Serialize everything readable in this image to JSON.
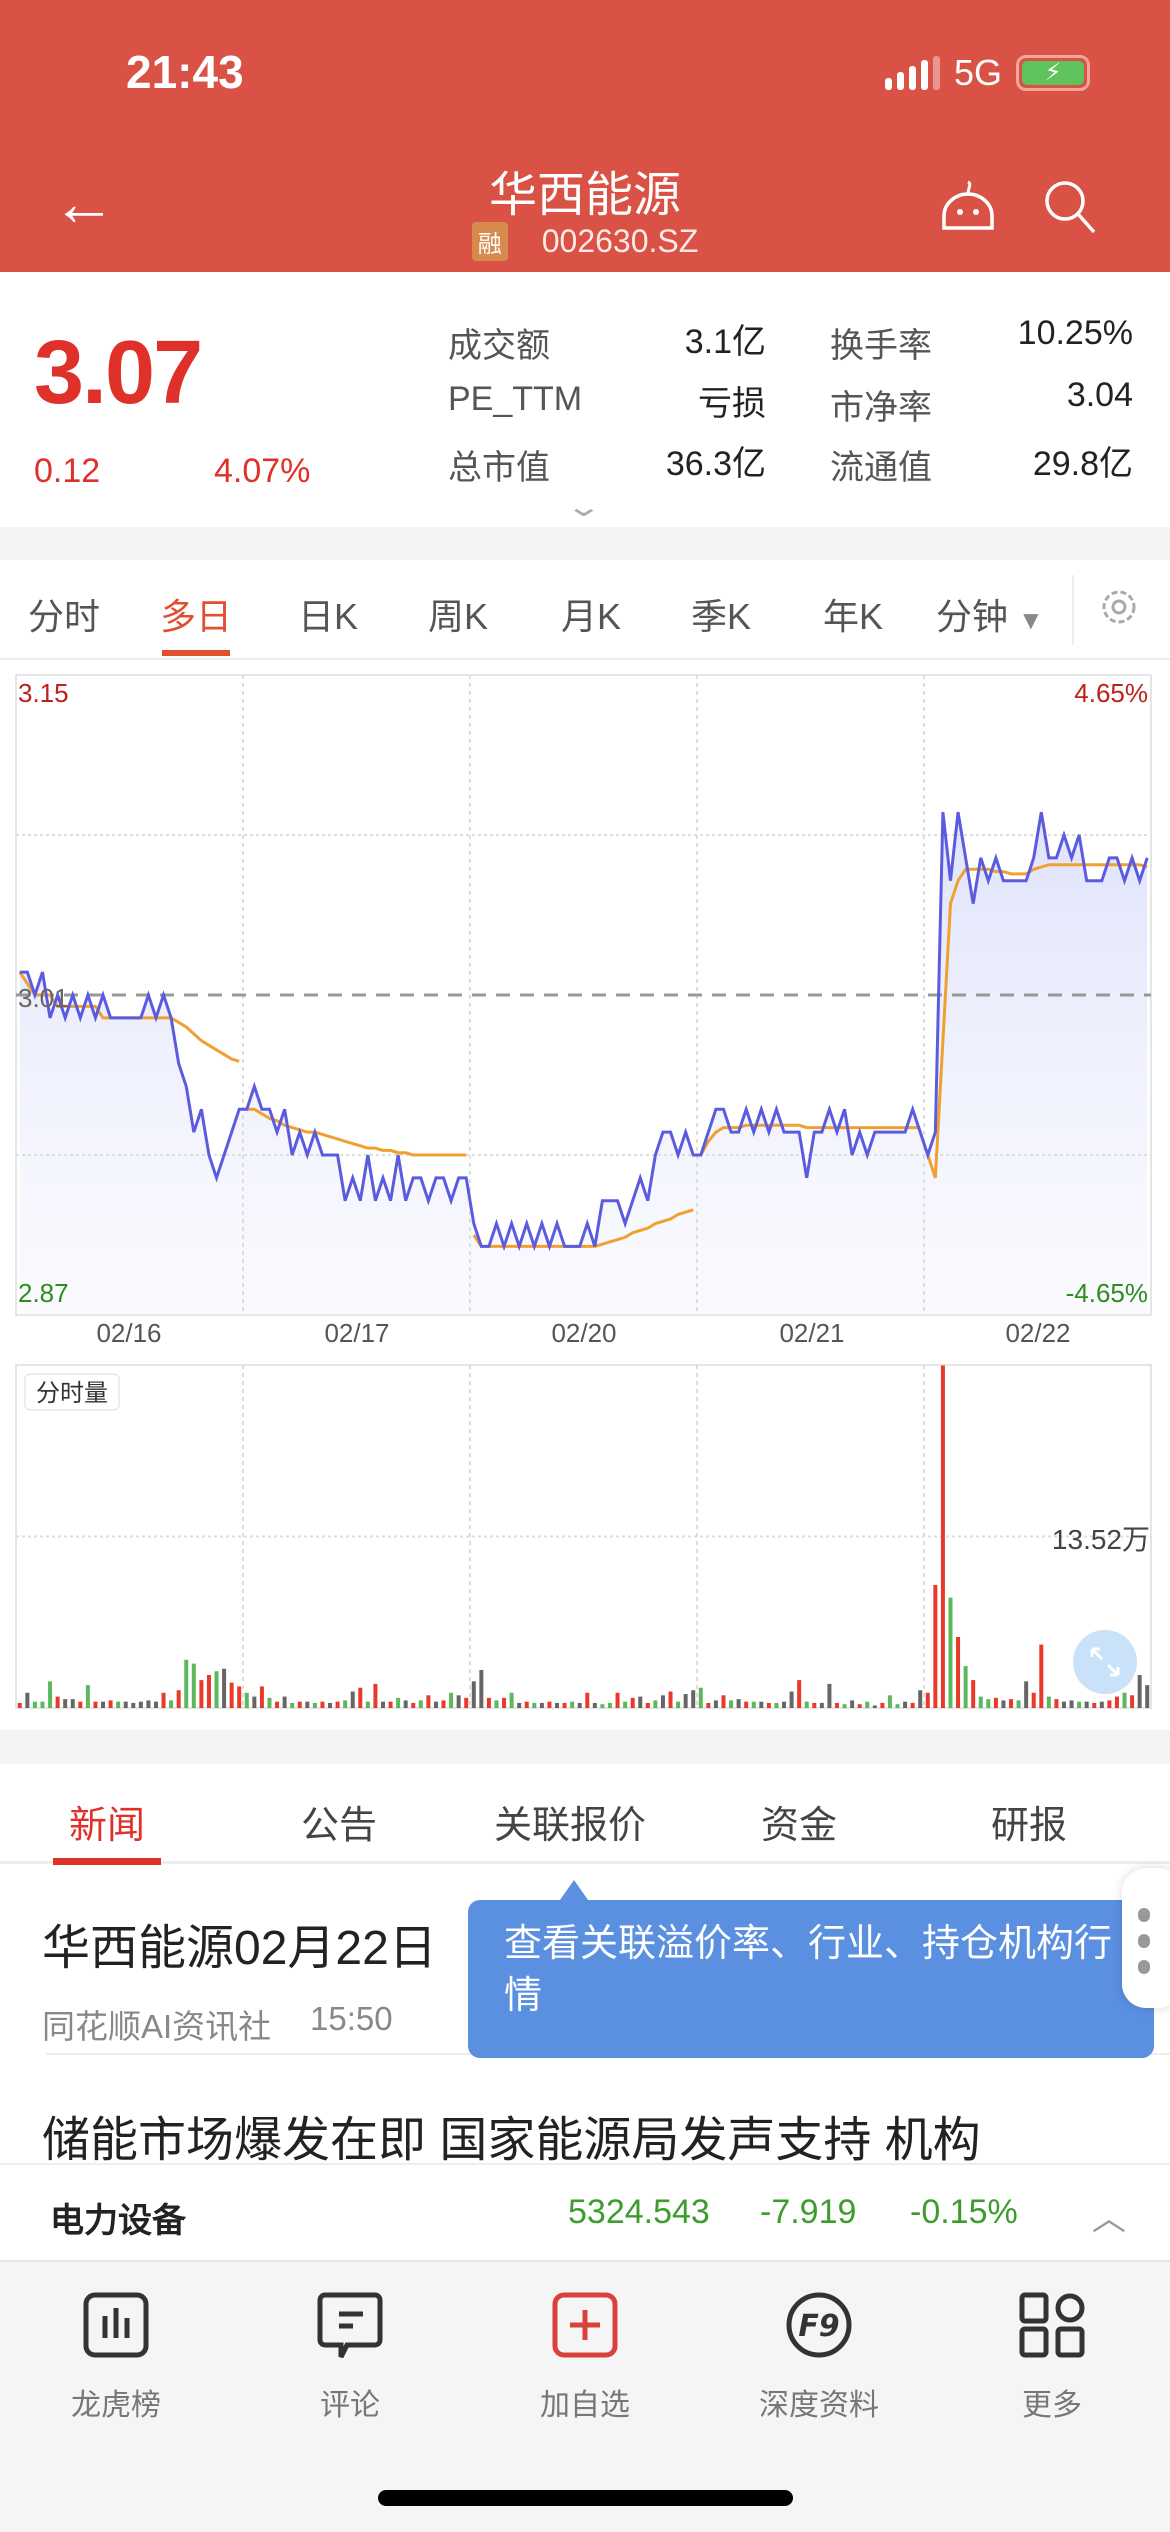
{
  "status_bar": {
    "time": "21:43",
    "network": "5G",
    "battery_icon": "battery-charging-icon"
  },
  "header": {
    "title": "华西能源",
    "margin_badge": "融",
    "code": "002630.SZ"
  },
  "quote": {
    "price": "3.07",
    "change": "0.12",
    "change_pct": "4.07%",
    "stats": [
      {
        "label": "成交额",
        "value": "3.1亿"
      },
      {
        "label": "换手率",
        "value": "10.25%"
      },
      {
        "label": "PE_TTM",
        "value": "亏损"
      },
      {
        "label": "市净率",
        "value": "3.04"
      },
      {
        "label": "总市值",
        "value": "36.3亿"
      },
      {
        "label": "流通值",
        "value": "29.8亿"
      }
    ]
  },
  "kline_tabs": [
    "分时",
    "多日",
    "日K",
    "周K",
    "月K",
    "季K",
    "年K",
    "分钟"
  ],
  "kline_active": "多日",
  "chart_data": [
    {
      "type": "line",
      "title": "",
      "ylim": [
        2.87,
        3.15
      ],
      "ref_price": 3.01,
      "y_labels": {
        "top": "3.15",
        "bottom": "2.87",
        "ref": "3.01",
        "top_pct": "4.65%",
        "bottom_pct": "-4.65%"
      },
      "categories": [
        "02/16",
        "02/17",
        "02/20",
        "02/21",
        "02/22"
      ],
      "grid": true,
      "colors": {
        "price": "#5B5BE0",
        "avg": "#F0A030",
        "up": "#C0201A",
        "down": "#2E8B1E"
      },
      "series": [
        {
          "values": [
            [
              3.02,
              3.02,
              3.01,
              3.02,
              3.0,
              3.01,
              3.0,
              3.01,
              3.0,
              3.01,
              3.0,
              3.01,
              3.0,
              3.0,
              3.0,
              3.0,
              3.0,
              3.01,
              3.0,
              3.01,
              3.0,
              2.98,
              2.97,
              2.95,
              2.96,
              2.94,
              2.93,
              2.94,
              2.95,
              2.96
            ],
            [
              2.96,
              2.97,
              2.96,
              2.96,
              2.95,
              2.96,
              2.94,
              2.95,
              2.94,
              2.95,
              2.94,
              2.94,
              2.94,
              2.92,
              2.93,
              2.92,
              2.94,
              2.92,
              2.93,
              2.92,
              2.94,
              2.92,
              2.93,
              2.93,
              2.92,
              2.93,
              2.93,
              2.92,
              2.93,
              2.93
            ],
            [
              2.91,
              2.9,
              2.9,
              2.91,
              2.9,
              2.91,
              2.9,
              2.91,
              2.9,
              2.91,
              2.9,
              2.91,
              2.9,
              2.9,
              2.9,
              2.91,
              2.9,
              2.92,
              2.92,
              2.92,
              2.91,
              2.92,
              2.93,
              2.92,
              2.94,
              2.95,
              2.95,
              2.94,
              2.95,
              2.94
            ],
            [
              2.94,
              2.95,
              2.96,
              2.96,
              2.95,
              2.95,
              2.96,
              2.95,
              2.96,
              2.95,
              2.96,
              2.95,
              2.95,
              2.95,
              2.93,
              2.95,
              2.95,
              2.96,
              2.95,
              2.96,
              2.94,
              2.95,
              2.94,
              2.95,
              2.95,
              2.95,
              2.95,
              2.95,
              2.96,
              2.95
            ],
            [
              2.94,
              2.95,
              3.09,
              3.06,
              3.09,
              3.07,
              3.05,
              3.07,
              3.06,
              3.07,
              3.06,
              3.06,
              3.06,
              3.06,
              3.07,
              3.09,
              3.07,
              3.07,
              3.08,
              3.07,
              3.08,
              3.06,
              3.06,
              3.06,
              3.07,
              3.07,
              3.06,
              3.07,
              3.06,
              3.07
            ]
          ]
        },
        {
          "values": [
            [
              3.02,
              3.015,
              3.01,
              3.01,
              3.01,
              3.005,
              3.005,
              3.005,
              3.005,
              3.005,
              3.005,
              3.0,
              3.0,
              3.0,
              3.0,
              3.0,
              3.0,
              3.0,
              3.0,
              3.0,
              3.0,
              2.998,
              2.996,
              2.993,
              2.99,
              2.988,
              2.986,
              2.984,
              2.982,
              2.981
            ],
            [
              2.96,
              2.96,
              2.958,
              2.956,
              2.955,
              2.953,
              2.952,
              2.951,
              2.95,
              2.95,
              2.949,
              2.948,
              2.947,
              2.946,
              2.945,
              2.944,
              2.943,
              2.943,
              2.942,
              2.942,
              2.941,
              2.941,
              2.94,
              2.94,
              2.94,
              2.94,
              2.94,
              2.94,
              2.94,
              2.94
            ],
            [
              2.905,
              2.9,
              2.9,
              2.9,
              2.9,
              2.9,
              2.9,
              2.9,
              2.9,
              2.9,
              2.9,
              2.9,
              2.9,
              2.9,
              2.9,
              2.9,
              2.9,
              2.901,
              2.902,
              2.903,
              2.904,
              2.906,
              2.907,
              2.908,
              2.91,
              2.911,
              2.912,
              2.914,
              2.915,
              2.916
            ],
            [
              2.94,
              2.946,
              2.95,
              2.952,
              2.952,
              2.952,
              2.953,
              2.953,
              2.953,
              2.953,
              2.953,
              2.953,
              2.953,
              2.953,
              2.952,
              2.952,
              2.952,
              2.952,
              2.952,
              2.952,
              2.952,
              2.952,
              2.952,
              2.952,
              2.952,
              2.952,
              2.952,
              2.952,
              2.952,
              2.952
            ],
            [
              2.94,
              2.93,
              2.99,
              3.05,
              3.06,
              3.065,
              3.065,
              3.065,
              3.065,
              3.064,
              3.064,
              3.063,
              3.063,
              3.063,
              3.065,
              3.066,
              3.067,
              3.067,
              3.067,
              3.067,
              3.067,
              3.067,
              3.067,
              3.067,
              3.067,
              3.067,
              3.067,
              3.067,
              3.067,
              3.066
            ]
          ]
        }
      ]
    },
    {
      "type": "bar",
      "title": "分时量",
      "y_label": "13.52万",
      "ylim": [
        0,
        27.04
      ],
      "unit": "万",
      "values": [
        [
          0.4,
          1.2,
          0.5,
          0.5,
          2.1,
          0.9,
          0.7,
          0.7,
          0.5,
          1.8,
          0.5,
          0.5,
          0.6,
          0.5,
          0.5,
          0.4,
          0.5,
          0.6,
          0.5,
          1.2,
          0.6,
          1.4,
          3.8,
          3.5,
          2.2,
          2.6,
          2.9,
          3.1,
          2.0,
          1.7
        ],
        [
          1.2,
          0.9,
          1.7,
          0.8,
          0.5,
          0.9,
          0.4,
          0.5,
          0.5,
          0.4,
          0.5,
          0.4,
          0.5,
          0.6,
          1.3,
          1.6,
          0.5,
          1.9,
          0.5,
          0.5,
          0.8,
          0.6,
          0.4,
          0.6,
          1.0,
          0.5,
          0.6,
          1.2,
          1.0,
          0.8
        ],
        [
          2.1,
          3.0,
          0.8,
          0.6,
          0.8,
          1.2,
          0.4,
          0.5,
          0.4,
          0.4,
          0.5,
          0.4,
          0.4,
          0.5,
          0.4,
          1.2,
          0.4,
          0.3,
          0.4,
          1.2,
          0.5,
          0.8,
          0.9,
          0.4,
          0.6,
          1.0,
          1.3,
          0.5,
          1.1,
          1.4
        ],
        [
          1.6,
          0.4,
          0.6,
          1.0,
          0.6,
          0.7,
          0.5,
          0.5,
          0.5,
          0.4,
          0.4,
          0.5,
          1.3,
          2.2,
          0.5,
          0.4,
          0.4,
          1.9,
          0.4,
          0.3,
          0.6,
          0.3,
          0.5,
          0.2,
          0.4,
          1.0,
          0.3,
          0.5,
          0.4,
          1.4
        ],
        [
          1.2,
          9.7,
          27.0,
          8.7,
          5.6,
          3.3,
          2.2,
          0.9,
          0.7,
          0.8,
          0.6,
          0.7,
          0.6,
          2.1,
          1.2,
          5.0,
          0.9,
          0.7,
          0.5,
          0.6,
          0.5,
          0.5,
          0.4,
          0.5,
          0.6,
          0.9,
          1.2,
          1.0,
          2.6,
          1.8
        ]
      ],
      "directions": [
        "rnggg rnnrg rnrgn nnnnr grggr rgnrr",
        "gnrgr ngrng rnrgn rgrnr gnrgr nrgnr",
        "nnrgr gnrgn rnrgn rnggr grnrg nrgnn",
        "grnrg nrgnr gnnrg rnnrg nrgnr ggnrn",
        "rrrgr grggr nrgnr rgrnn gnrnr rgrnn"
      ],
      "colors": {
        "r": "#E8392B",
        "g": "#5CB85C",
        "n": "#666666"
      }
    }
  ],
  "news_tabs": [
    "新闻",
    "公告",
    "关联报价",
    "资金",
    "研报"
  ],
  "news": [
    {
      "title": "华西能源02月22日",
      "source": "同花顺AI资讯社",
      "time": "15:50"
    },
    {
      "title": "储能市场爆发在即  国家能源局发声支持  机构"
    }
  ],
  "tooltip": {
    "text": "查看关联溢价率、行业、持仓机构行情"
  },
  "sector": {
    "name": "电力设备",
    "index": "5324.543",
    "change": "-7.919",
    "change_pct": "-0.15%"
  },
  "bottom_nav": [
    {
      "label": "龙虎榜",
      "icon": "chart-bars-icon"
    },
    {
      "label": "评论",
      "icon": "comment-icon"
    },
    {
      "label": "加自选",
      "icon": "add-watchlist-icon"
    },
    {
      "label": "深度资料",
      "icon": "f9-icon"
    },
    {
      "label": "更多",
      "icon": "grid-more-icon"
    }
  ]
}
